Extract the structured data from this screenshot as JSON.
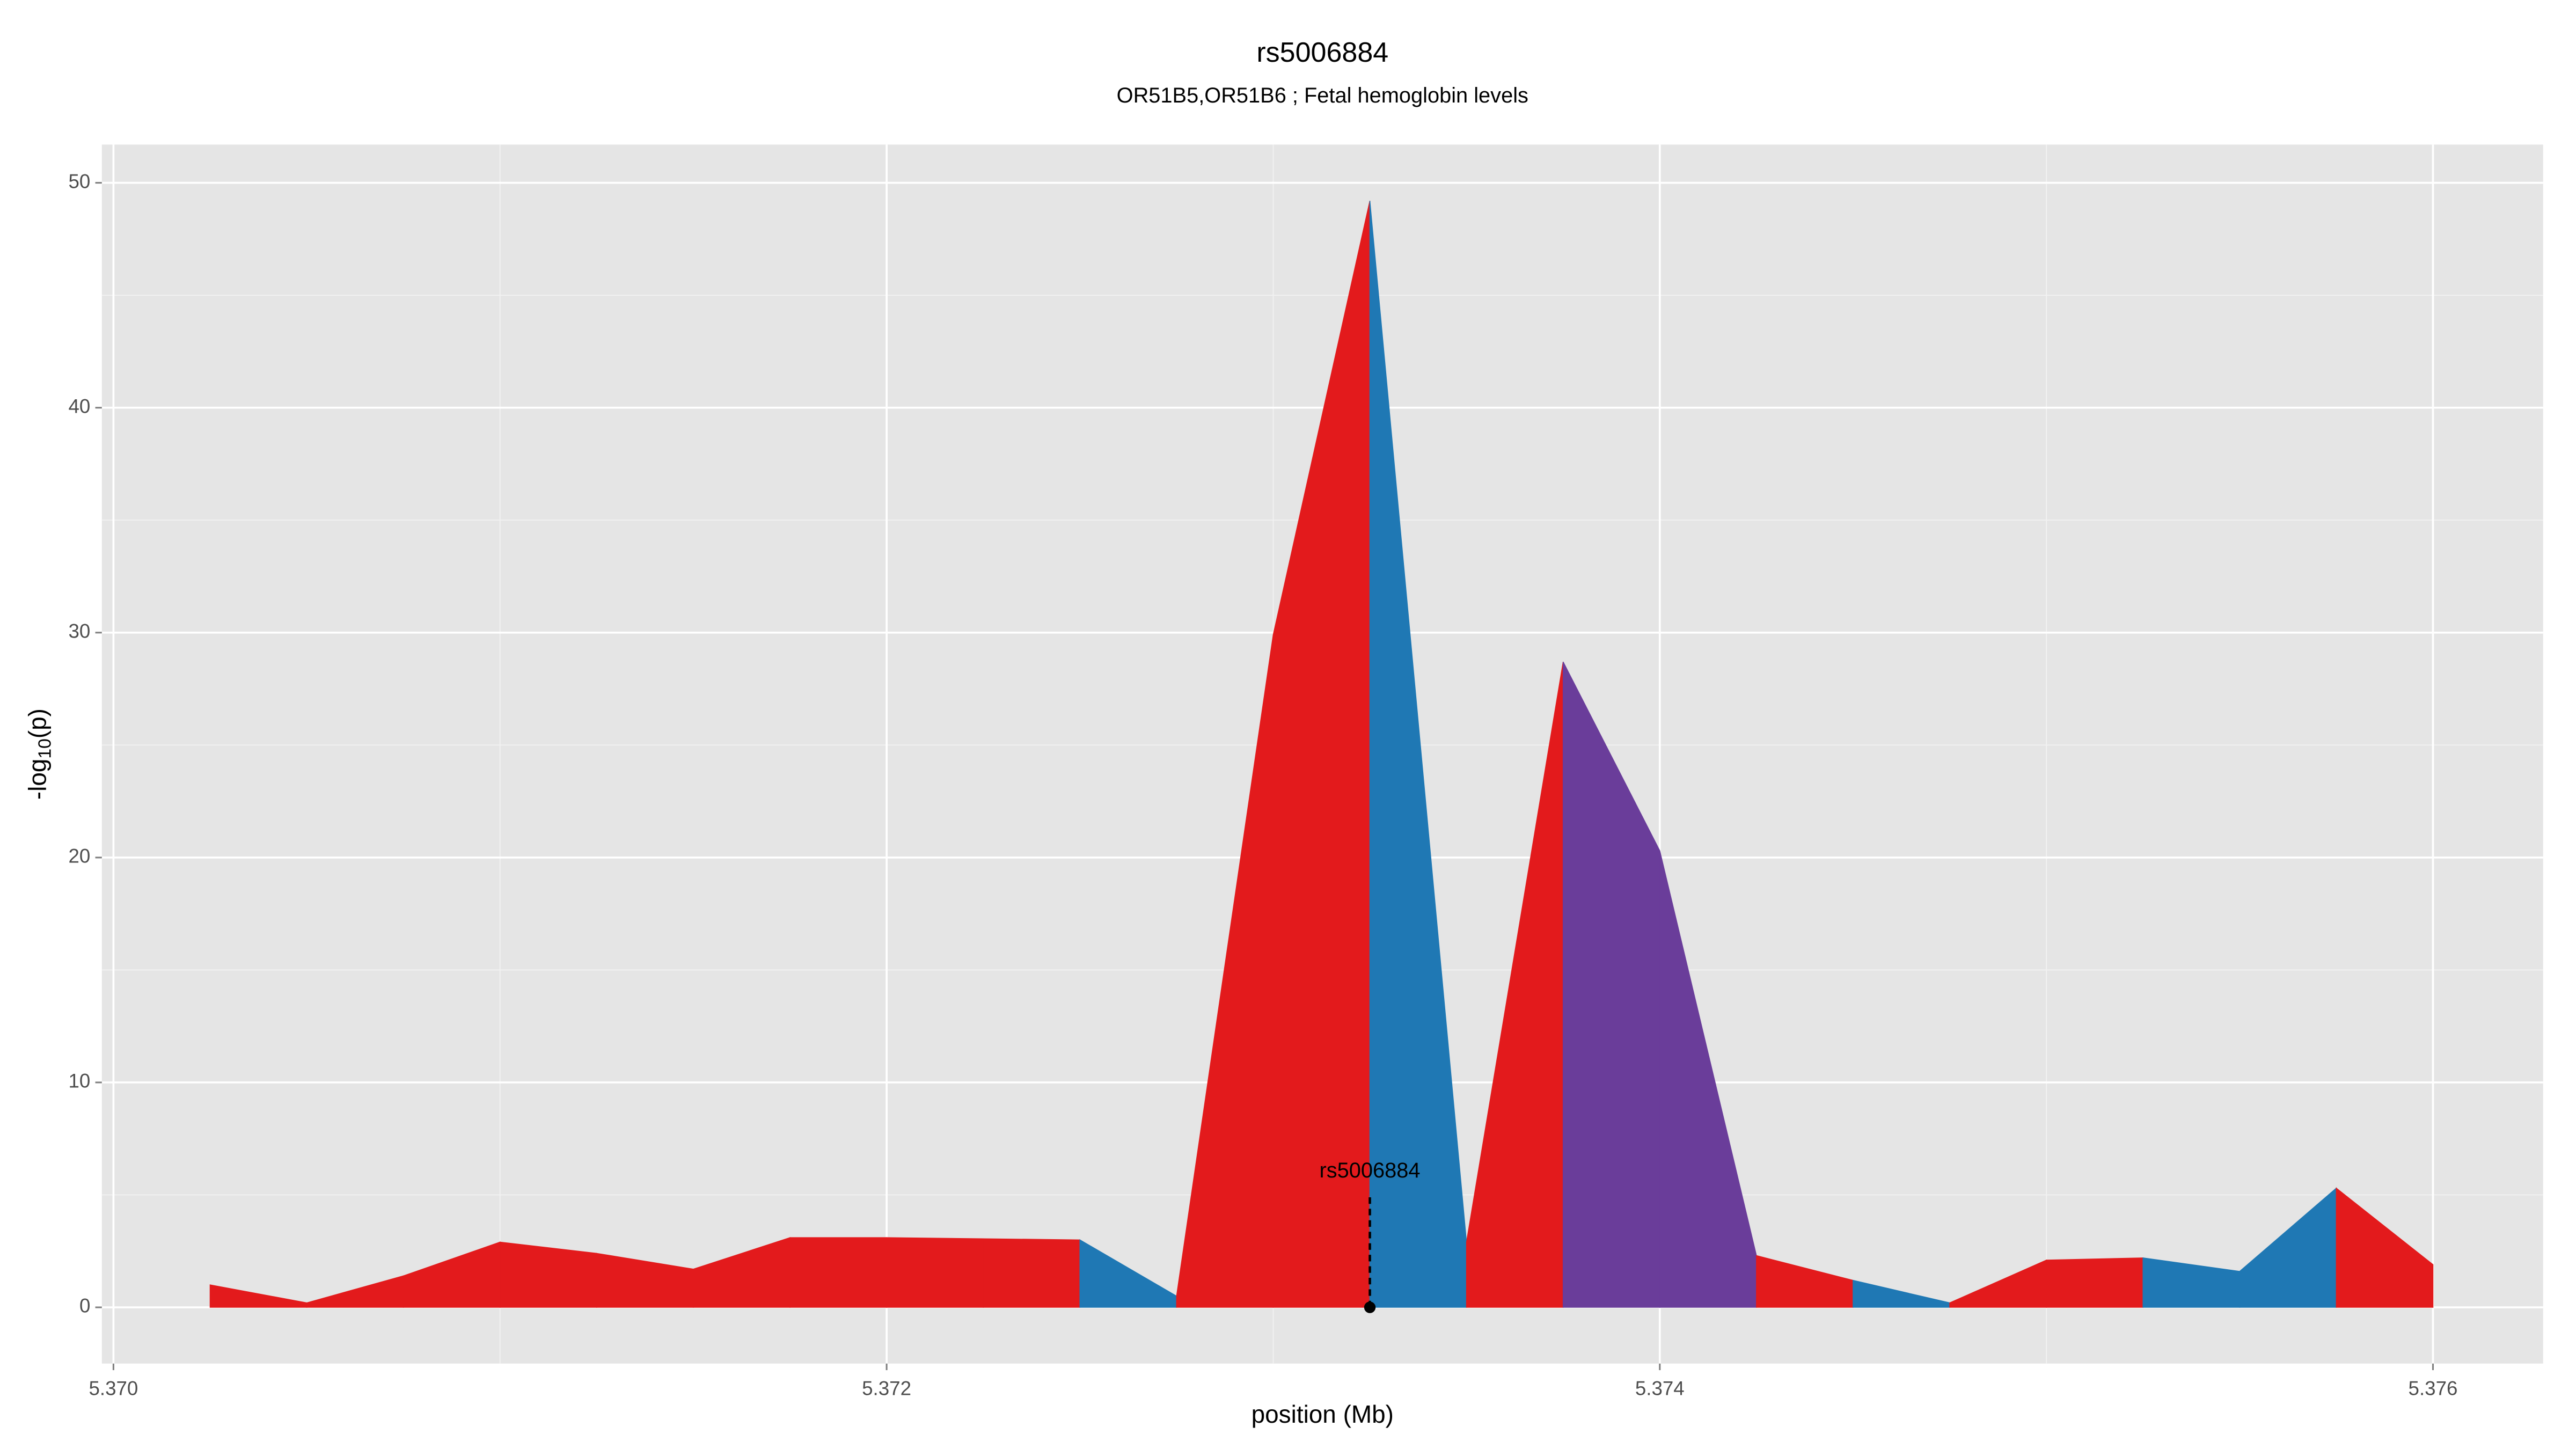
{
  "chart_data": {
    "type": "area",
    "title": "rs5006884",
    "subtitle": "OR51B5,OR51B6 ; Fetal hemoglobin levels",
    "x_label": "position (Mb)",
    "y_label": {
      "main": "-log",
      "sub": "10",
      "end": "(p)"
    },
    "x": [
      5.37025,
      5.3705,
      5.37075,
      5.371,
      5.37125,
      5.3715,
      5.37175,
      5.372,
      5.37225,
      5.3725,
      5.37275,
      5.373,
      5.37325,
      5.3735,
      5.37375,
      5.374,
      5.37425,
      5.3745,
      5.37475,
      5.375,
      5.37525,
      5.3755,
      5.37575,
      5.376
    ],
    "values": [
      1.0,
      0.2,
      1.4,
      2.9,
      2.4,
      1.7,
      3.1,
      3.1,
      3.05,
      3.0,
      0.5,
      29.9,
      49.2,
      2.9,
      28.7,
      20.3,
      2.3,
      1.2,
      0.2,
      2.1,
      2.2,
      1.6,
      5.3,
      1.9
    ],
    "segment_colors": [
      "#e31a1c",
      "#e31a1c",
      "#e31a1c",
      "#e31a1c",
      "#e31a1c",
      "#e31a1c",
      "#e31a1c",
      "#e31a1c",
      "#e31a1c",
      "#1f78b4",
      "#e31a1c",
      "#e31a1c",
      "#1f78b4",
      "#e31a1c",
      "#6a3d9a",
      "#6a3d9a",
      "#e31a1c",
      "#1f78b4",
      "#e31a1c",
      "#e31a1c",
      "#1f78b4",
      "#1f78b4",
      "#e31a1c"
    ],
    "annotation": {
      "label": "rs5006884",
      "x": 5.37325,
      "y": 5
    },
    "xlim": [
      5.36997,
      5.376285
    ],
    "ylim": [
      -2.5,
      51.7
    ],
    "xticks": [
      {
        "value": 5.37,
        "label": "5.370"
      },
      {
        "value": 5.372,
        "label": "5.372"
      },
      {
        "value": 5.374,
        "label": "5.374"
      },
      {
        "value": 5.376,
        "label": "5.376"
      }
    ],
    "yticks": [
      0,
      10,
      20,
      30,
      40,
      50
    ],
    "grid": true
  }
}
